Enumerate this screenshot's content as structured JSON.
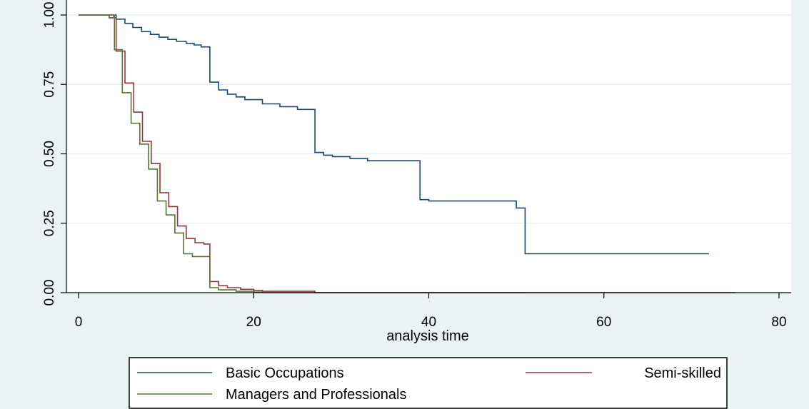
{
  "chart_data": {
    "type": "line",
    "title": "",
    "xlabel": "analysis time",
    "ylabel": "",
    "xlim": [
      0,
      80
    ],
    "ylim": [
      0,
      1
    ],
    "x_ticks": [
      0,
      20,
      40,
      60,
      80
    ],
    "x_tick_labels": [
      "0",
      "20",
      "40",
      "60",
      "80"
    ],
    "y_ticks": [
      0,
      0.25,
      0.5,
      0.75,
      1.0
    ],
    "y_tick_labels": [
      "0.00",
      "0.25",
      "0.50",
      "0.75",
      "1.00"
    ],
    "grid": "horizontal",
    "step": true,
    "legend_position": "bottom",
    "series": [
      {
        "name": "Basic Occupations",
        "color": "#1a476f",
        "points": [
          [
            0,
            1.0
          ],
          [
            3.2,
            1.0
          ],
          [
            4.3,
            0.985
          ],
          [
            5.3,
            0.97
          ],
          [
            6.2,
            0.955
          ],
          [
            7.2,
            0.94
          ],
          [
            8.2,
            0.93
          ],
          [
            9.2,
            0.92
          ],
          [
            10.2,
            0.912
          ],
          [
            11.2,
            0.905
          ],
          [
            12.3,
            0.898
          ],
          [
            13.2,
            0.892
          ],
          [
            14.0,
            0.885
          ],
          [
            15.0,
            0.758
          ],
          [
            16.0,
            0.73
          ],
          [
            17.0,
            0.715
          ],
          [
            18.0,
            0.705
          ],
          [
            19.0,
            0.695
          ],
          [
            21.0,
            0.68
          ],
          [
            23.0,
            0.67
          ],
          [
            25.0,
            0.66
          ],
          [
            27.0,
            0.505
          ],
          [
            28.0,
            0.495
          ],
          [
            29.0,
            0.49
          ],
          [
            31.0,
            0.483
          ],
          [
            33.0,
            0.475
          ],
          [
            39.0,
            0.335
          ],
          [
            40.0,
            0.33
          ],
          [
            50.0,
            0.305
          ],
          [
            51.0,
            0.14
          ],
          [
            72.0,
            0.14
          ]
        ]
      },
      {
        "name": "Semi-skilled",
        "color": "#90353b",
        "points": [
          [
            0,
            1.0
          ],
          [
            3.2,
            1.0
          ],
          [
            3.5,
            0.99
          ],
          [
            4.3,
            0.87
          ],
          [
            5.3,
            0.755
          ],
          [
            6.3,
            0.65
          ],
          [
            7.3,
            0.545
          ],
          [
            8.3,
            0.465
          ],
          [
            9.3,
            0.36
          ],
          [
            10.3,
            0.31
          ],
          [
            11.3,
            0.24
          ],
          [
            12.3,
            0.195
          ],
          [
            13.3,
            0.18
          ],
          [
            14.3,
            0.175
          ],
          [
            15.0,
            0.04
          ],
          [
            16.0,
            0.025
          ],
          [
            17.0,
            0.018
          ],
          [
            18.5,
            0.012
          ],
          [
            20.0,
            0.008
          ],
          [
            21.0,
            0.005
          ],
          [
            27.0,
            0.005
          ],
          [
            27.0,
            0.0
          ],
          [
            75.0,
            0.0
          ]
        ]
      },
      {
        "name": "Managers and Professionals",
        "color": "#55752f",
        "points": [
          [
            0,
            1.0
          ],
          [
            3.0,
            1.0
          ],
          [
            4.0,
            0.995
          ],
          [
            4.1,
            0.875
          ],
          [
            5.0,
            0.72
          ],
          [
            6.0,
            0.61
          ],
          [
            7.0,
            0.535
          ],
          [
            8.0,
            0.445
          ],
          [
            9.0,
            0.33
          ],
          [
            10.0,
            0.28
          ],
          [
            11.0,
            0.215
          ],
          [
            12.0,
            0.14
          ],
          [
            13.0,
            0.13
          ],
          [
            15.0,
            0.018
          ],
          [
            16.0,
            0.01
          ],
          [
            18.0,
            0.005
          ],
          [
            20.0,
            0.002
          ],
          [
            21.0,
            0.0
          ],
          [
            51.0,
            0.0
          ]
        ]
      }
    ]
  }
}
